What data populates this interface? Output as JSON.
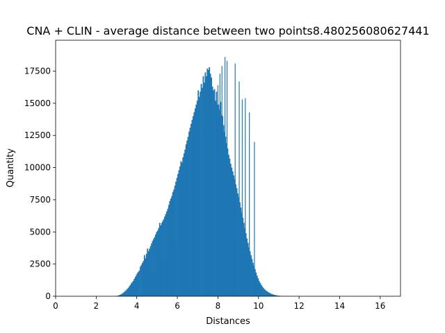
{
  "chart_data": {
    "type": "bar",
    "title": "CNA + CLIN - average distance between two points8.480256080627441",
    "xlabel": "Distances",
    "ylabel": "Quantity",
    "xlim": [
      0,
      17
    ],
    "ylim": [
      0,
      19900
    ],
    "xticks": [
      0,
      2,
      4,
      6,
      8,
      10,
      12,
      14,
      16
    ],
    "yticks": [
      0,
      2500,
      5000,
      7500,
      10000,
      12500,
      15000,
      17500
    ],
    "bar_color": "#1f77b4",
    "bin_edges_start": 1.0,
    "bin_width": 0.05,
    "values": [
      0,
      0,
      0,
      0,
      0,
      0,
      0,
      0,
      0,
      0,
      0,
      0,
      0,
      0,
      0,
      0,
      0,
      0,
      0,
      0,
      0,
      0,
      0,
      0,
      0,
      0,
      0,
      0,
      0,
      0,
      0,
      0,
      0,
      0,
      0,
      0,
      0,
      0,
      10,
      20,
      30,
      50,
      80,
      110,
      150,
      200,
      260,
      330,
      400,
      480,
      560,
      650,
      750,
      870,
      1000,
      1100,
      1200,
      1350,
      1500,
      1650,
      1800,
      1900,
      2000,
      2300,
      2450,
      2600,
      2750,
      3200,
      2950,
      3300,
      3700,
      3500,
      3700,
      3900,
      4100,
      4300,
      4450,
      4600,
      4800,
      5000,
      5100,
      5300,
      5700,
      5500,
      5700,
      5850,
      6000,
      6200,
      6400,
      6600,
      6800,
      7100,
      7400,
      7600,
      7800,
      8100,
      8300,
      8600,
      8900,
      9200,
      9500,
      9800,
      10100,
      10500,
      10400,
      10800,
      11100,
      11400,
      11800,
      12100,
      12400,
      12800,
      13100,
      13400,
      13700,
      14000,
      14300,
      14600,
      14900,
      15200,
      16000,
      15500,
      15900,
      16500,
      16200,
      17100,
      16600,
      17400,
      17100,
      17700,
      17600,
      17800,
      17300,
      17000,
      16300,
      16000,
      16100,
      15200,
      15900,
      14900,
      14900,
      14500,
      15100,
      14100,
      14000,
      13300,
      12800,
      12400,
      11900,
      11500,
      11000,
      10700,
      10300,
      10000,
      9700,
      9400,
      9100,
      8700,
      8400,
      8000,
      7700,
      7300,
      6900,
      6500,
      6100,
      5700,
      5300,
      4900,
      4500,
      4150,
      3800,
      3500,
      3200,
      2900,
      2600,
      2350,
      2100,
      1850,
      1600,
      1400,
      1200,
      1050,
      900,
      780,
      670,
      580,
      500,
      430,
      370,
      320,
      270,
      230,
      190,
      160,
      130,
      110,
      90,
      70,
      55,
      45,
      35,
      28,
      22,
      17,
      13,
      10,
      8,
      6,
      4,
      3,
      2,
      1,
      1,
      1,
      0,
      0,
      0,
      0,
      0,
      0,
      0,
      0,
      0,
      0,
      0,
      0,
      0,
      0,
      0,
      0,
      0,
      0,
      0,
      0,
      0,
      0,
      0,
      0,
      0,
      0,
      0,
      0,
      0,
      0,
      0,
      0,
      0,
      0,
      0,
      0,
      0,
      0,
      0,
      0,
      0,
      0,
      0,
      0,
      0,
      0
    ],
    "spikes": [
      {
        "x": 4.75,
        "value": 1900
      },
      {
        "x": 5.45,
        "value": 3100
      },
      {
        "x": 5.75,
        "value": 4300
      },
      {
        "x": 6.5,
        "value": 8400
      },
      {
        "x": 6.75,
        "value": 8900
      },
      {
        "x": 7.4,
        "value": 10500
      },
      {
        "x": 7.6,
        "value": 12500
      },
      {
        "x": 7.85,
        "value": 14700
      },
      {
        "x": 8.0,
        "value": 16400
      },
      {
        "x": 8.1,
        "value": 17300
      },
      {
        "x": 8.2,
        "value": 17900
      },
      {
        "x": 8.35,
        "value": 18600
      },
      {
        "x": 8.45,
        "value": 18300
      },
      {
        "x": 8.85,
        "value": 18100
      },
      {
        "x": 9.05,
        "value": 16700
      },
      {
        "x": 9.2,
        "value": 15300
      },
      {
        "x": 9.35,
        "value": 15400
      },
      {
        "x": 9.55,
        "value": 14300
      },
      {
        "x": 9.8,
        "value": 12000
      }
    ]
  }
}
